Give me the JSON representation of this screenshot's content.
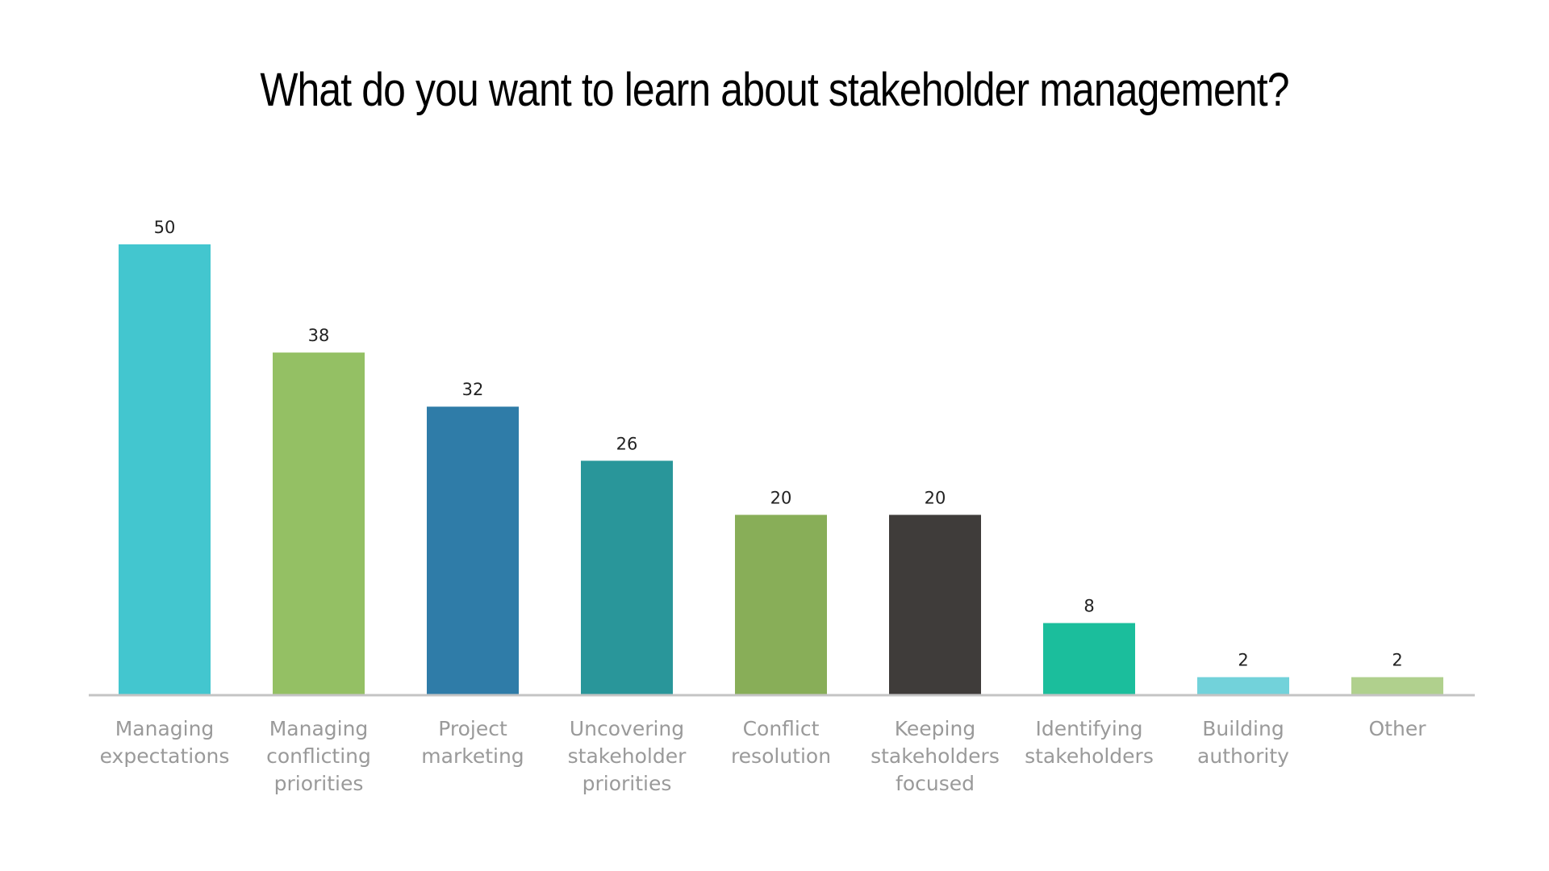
{
  "chart_data": {
    "type": "bar",
    "title": "What do you want to learn about stakeholder management?",
    "categories": [
      [
        "Managing",
        "expectations"
      ],
      [
        "Managing",
        "conflicting",
        "priorities"
      ],
      [
        "Project",
        "marketing"
      ],
      [
        "Uncovering",
        "stakeholder",
        "priorities"
      ],
      [
        "Conflict",
        "resolution"
      ],
      [
        "Keeping",
        "stakeholders",
        "focused"
      ],
      [
        "Identifying",
        "stakeholders"
      ],
      [
        "Building",
        "authority"
      ],
      [
        "Other"
      ]
    ],
    "values": [
      50,
      38,
      32,
      26,
      20,
      20,
      8,
      2,
      2
    ],
    "colors": [
      "#43c6cf",
      "#94c064",
      "#2f7ca8",
      "#29969a",
      "#88ae58",
      "#3f3c3a",
      "#1bbe9c",
      "#72d2da",
      "#b0d08d"
    ],
    "ylim": [
      0,
      50
    ],
    "grid": false,
    "legend": "none",
    "xlabel": "",
    "ylabel": ""
  }
}
